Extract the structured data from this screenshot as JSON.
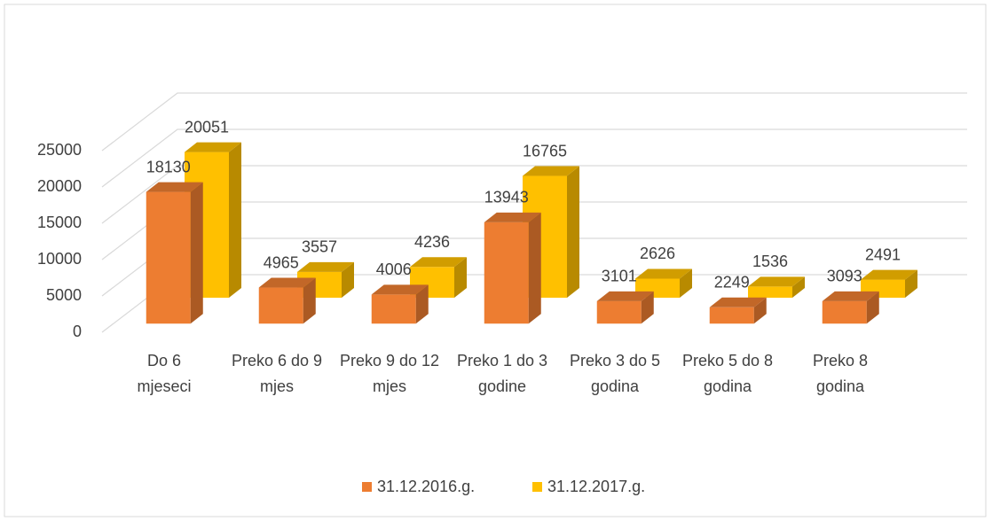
{
  "chart_data": {
    "type": "bar3d",
    "categories": [
      "Do 6 mjeseci",
      "Preko 6 do 9 mjes",
      "Preko 9 do 12 mjes",
      "Preko 1 do 3 godine",
      "Preko 3 do 5 godina",
      "Preko 5 do 8 godina",
      "Preko 8 godina"
    ],
    "series": [
      {
        "name": "31.12.2016.g.",
        "color": "#ED7D31",
        "values": [
          18130,
          4965,
          4006,
          13943,
          3101,
          2249,
          3093
        ]
      },
      {
        "name": "31.12.2017.g.",
        "color": "#FFC000",
        "values": [
          20051,
          3557,
          4236,
          16765,
          2626,
          1536,
          2491
        ]
      }
    ],
    "ylim": [
      0,
      25000
    ],
    "yticks": [
      0,
      5000,
      10000,
      15000,
      20000,
      25000
    ],
    "grid": true,
    "legend": "bottom"
  }
}
